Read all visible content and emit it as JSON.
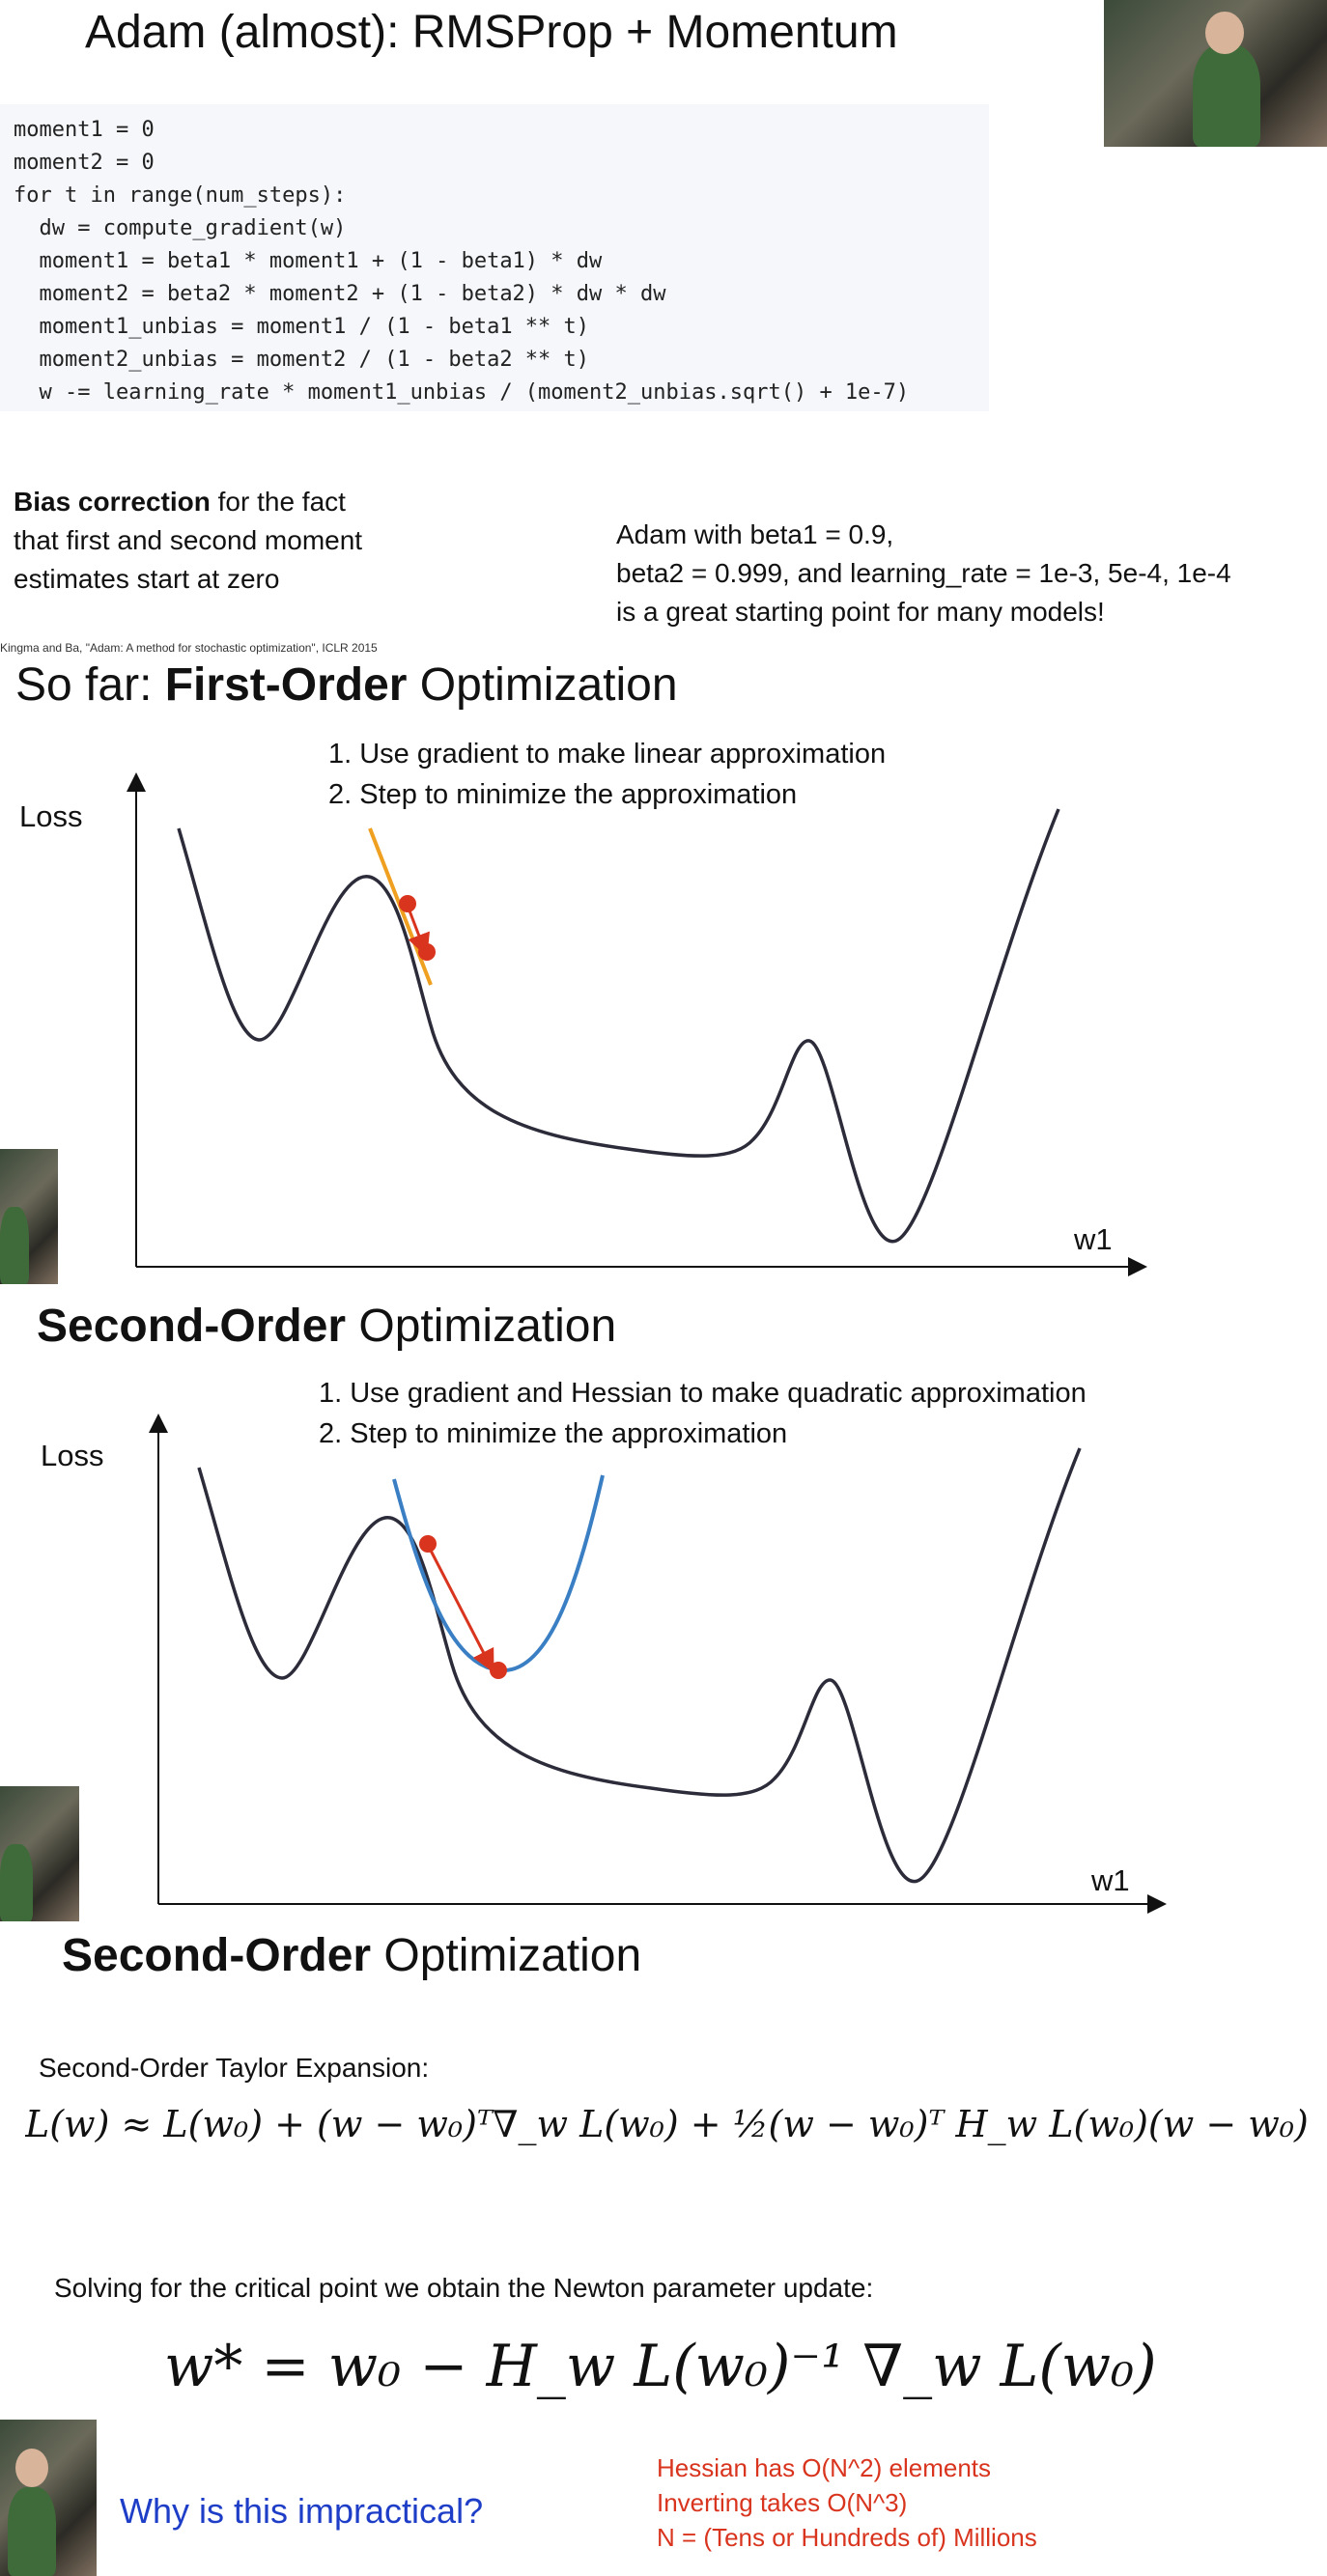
{
  "slide1": {
    "title": "Adam (almost): RMSProp + Momentum",
    "code_lines": [
      "moment1 = 0",
      "moment2 = 0",
      "for t in range(num_steps):",
      "  dw = compute_gradient(w)",
      "  moment1 = beta1 * moment1 + (1 - beta1) * dw",
      "  moment2 = beta2 * moment2 + (1 - beta2) * dw * dw",
      "  moment1_unbias = moment1 / (1 - beta1 ** t)",
      "  moment2_unbias = moment2 / (1 - beta2 ** t)",
      "  w -= learning_rate * moment1_unbias / (moment2_unbias.sqrt() + 1e-7)"
    ],
    "bias_bold": "Bias correction",
    "bias_rest": " for the fact",
    "bias_line2": "that first and second moment",
    "bias_line3": "estimates start at zero",
    "adam_line1": "Adam with beta1 = 0.9,",
    "adam_line2": "beta2 = 0.999, and learning_rate = 1e-3, 5e-4, 1e-4",
    "adam_line3": "is a great starting point for many models!",
    "citation": "Kingma and Ba, \"Adam: A method for stochastic optimization\", ICLR 2015"
  },
  "slide2": {
    "title_prefix": "So far: ",
    "title_bold": "First-Order",
    "title_suffix": " Optimization",
    "step1": "1. Use gradient to make linear approximation",
    "step2": "2. Step to minimize the approximation",
    "ylabel": "Loss",
    "xlabel": "w1"
  },
  "slide3": {
    "title_bold": "Second-Order",
    "title_suffix": " Optimization",
    "step1": "1. Use gradient and Hessian to make quadratic approximation",
    "step2": "2. Step to minimize the approximation",
    "ylabel": "Loss",
    "xlabel": "w1"
  },
  "slide4": {
    "title_bold": "Second-Order",
    "title_suffix": " Optimization",
    "taylor_label": "Second-Order Taylor Expansion:",
    "taylor_formula": "L(w) ≈ L(w₀) + (w − w₀)ᵀ∇_w L(w₀) + ½(w − w₀)ᵀ H_w L(w₀)(w − w₀)",
    "newton_label": "Solving for the critical point we obtain the Newton parameter update:",
    "newton_formula": "w* = w₀ − H_w L(w₀)⁻¹ ∇_w L(w₀)",
    "question": "Why is this impractical?",
    "reason1": "Hessian has O(N^2) elements",
    "reason2": "Inverting takes O(N^3)",
    "reason3": "N = (Tens or Hundreds of) Millions"
  },
  "colors": {
    "accent_red": "#d9341e",
    "accent_blue": "#1f3ec8",
    "quad_blue": "#3a7fc4",
    "tangent_orange": "#f0a020"
  }
}
